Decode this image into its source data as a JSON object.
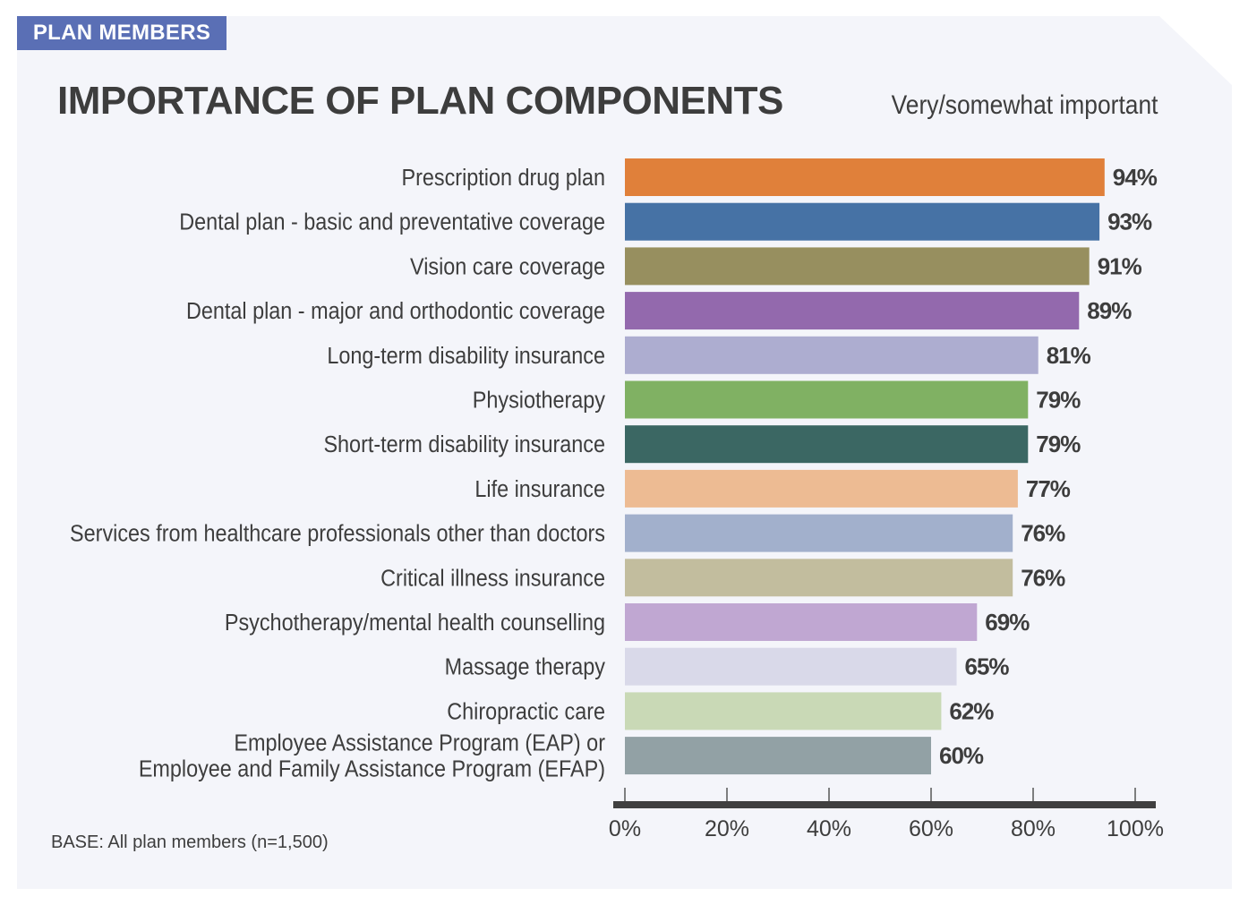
{
  "tag": "PLAN MEMBERS",
  "footnote": "BASE: All plan members (n=1,500)",
  "chart_data": {
    "type": "bar",
    "orientation": "horizontal",
    "title": "IMPORTANCE OF PLAN COMPONENTS",
    "subtitle": "Very/somewhat important",
    "xlim": [
      0,
      100
    ],
    "x_ticks": [
      "0%",
      "20%",
      "40%",
      "60%",
      "80%",
      "100%"
    ],
    "categories": [
      "Prescription drug plan",
      "Dental plan - basic and preventative coverage",
      "Vision care coverage",
      "Dental plan - major and orthodontic coverage",
      "Long-term disability insurance",
      "Physiotherapy",
      "Short-term disability insurance",
      "Life insurance",
      "Services from healthcare professionals other than doctors",
      "Critical illness insurance",
      "Psychotherapy/mental health counselling",
      "Massage therapy",
      "Chiropractic care",
      "Employee Assistance Program (EAP) or\nEmployee and Family Assistance Program (EFAP)"
    ],
    "values": [
      94,
      93,
      91,
      89,
      81,
      79,
      79,
      77,
      76,
      76,
      69,
      65,
      62,
      60
    ],
    "value_labels": [
      "94%",
      "93%",
      "91%",
      "89%",
      "81%",
      "79%",
      "79%",
      "77%",
      "76%",
      "76%",
      "69%",
      "65%",
      "62%",
      "60%"
    ],
    "colors": [
      "#e0803a",
      "#4672a5",
      "#978f5f",
      "#9369ad",
      "#adadd0",
      "#80b163",
      "#3b6763",
      "#edbb93",
      "#a2b0cc",
      "#c2bd9e",
      "#c0a7d2",
      "#d9d9e9",
      "#c9d9b6",
      "#92a1a5"
    ]
  }
}
